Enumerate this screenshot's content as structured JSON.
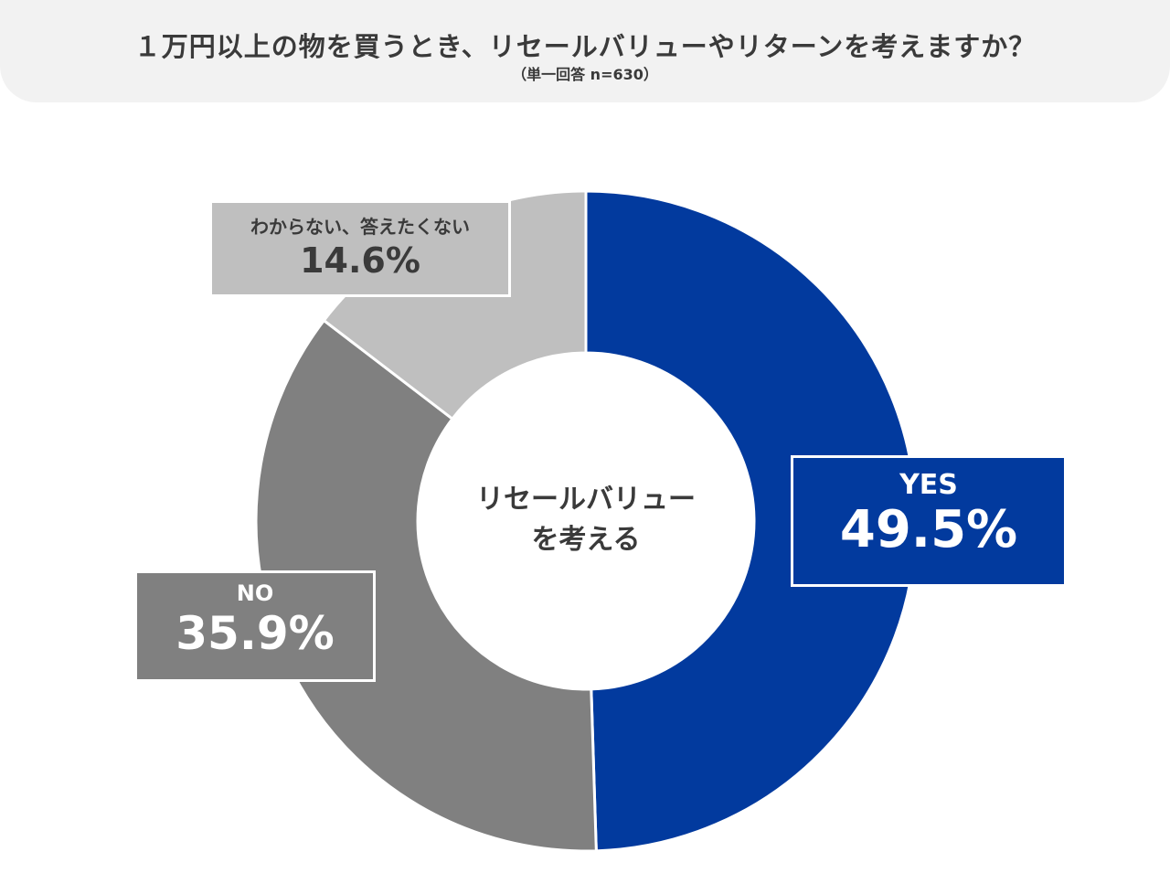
{
  "header": {
    "title": "１万円以上の物を買うとき、リセールバリューやリターンを考えますか？",
    "subtitle": "（単一回答 n=630）"
  },
  "chart_data": {
    "type": "pie",
    "variant": "donut",
    "center_label": [
      "リセールバリュー",
      "を考える"
    ],
    "categories": [
      "YES",
      "NO",
      "わからない、答えたくない"
    ],
    "values": [
      49.5,
      35.9,
      14.6
    ],
    "unit": "%",
    "data_labels": [
      "49.5%",
      "35.9%",
      "14.6%"
    ],
    "colors": [
      "#023a9e",
      "#808080",
      "#bfbfbf"
    ],
    "start": "12 o'clock, clockwise"
  }
}
